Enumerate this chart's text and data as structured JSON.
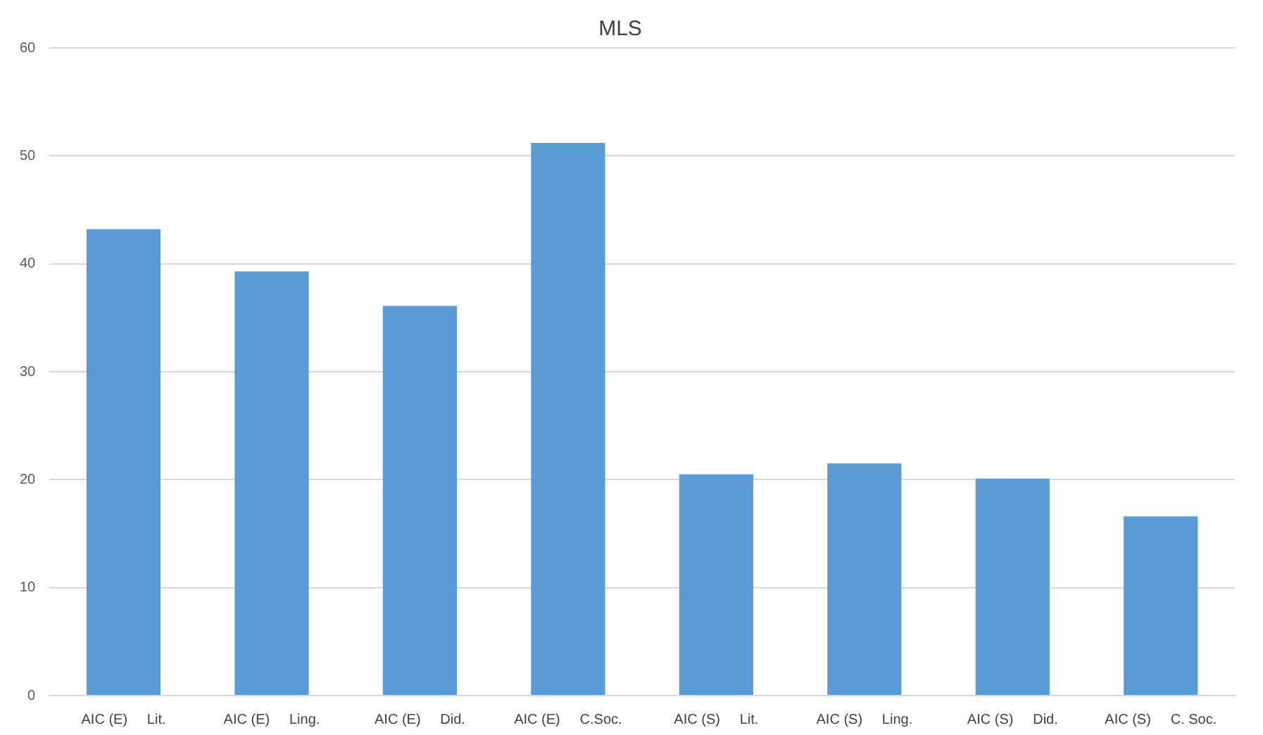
{
  "chart_data": {
    "type": "bar",
    "title": "MLS",
    "categories": [
      "AIC (E)     Lit.",
      "AIC (E)     Ling.",
      "AIC (E)     Did.",
      "AIC (E)     C.Soc.",
      "AIC (S)     Lit.",
      "AIC (S)     Ling.",
      "AIC (S)     Did.",
      "AIC (S)     C. Soc."
    ],
    "values": [
      43.2,
      39.3,
      36.1,
      51.2,
      20.5,
      21.5,
      20.1,
      16.6
    ],
    "color": "#5b9bd5",
    "ylim": [
      0,
      60
    ],
    "yticks": [
      0,
      10,
      20,
      30,
      40,
      50,
      60
    ],
    "grid": "y",
    "legend": false
  }
}
